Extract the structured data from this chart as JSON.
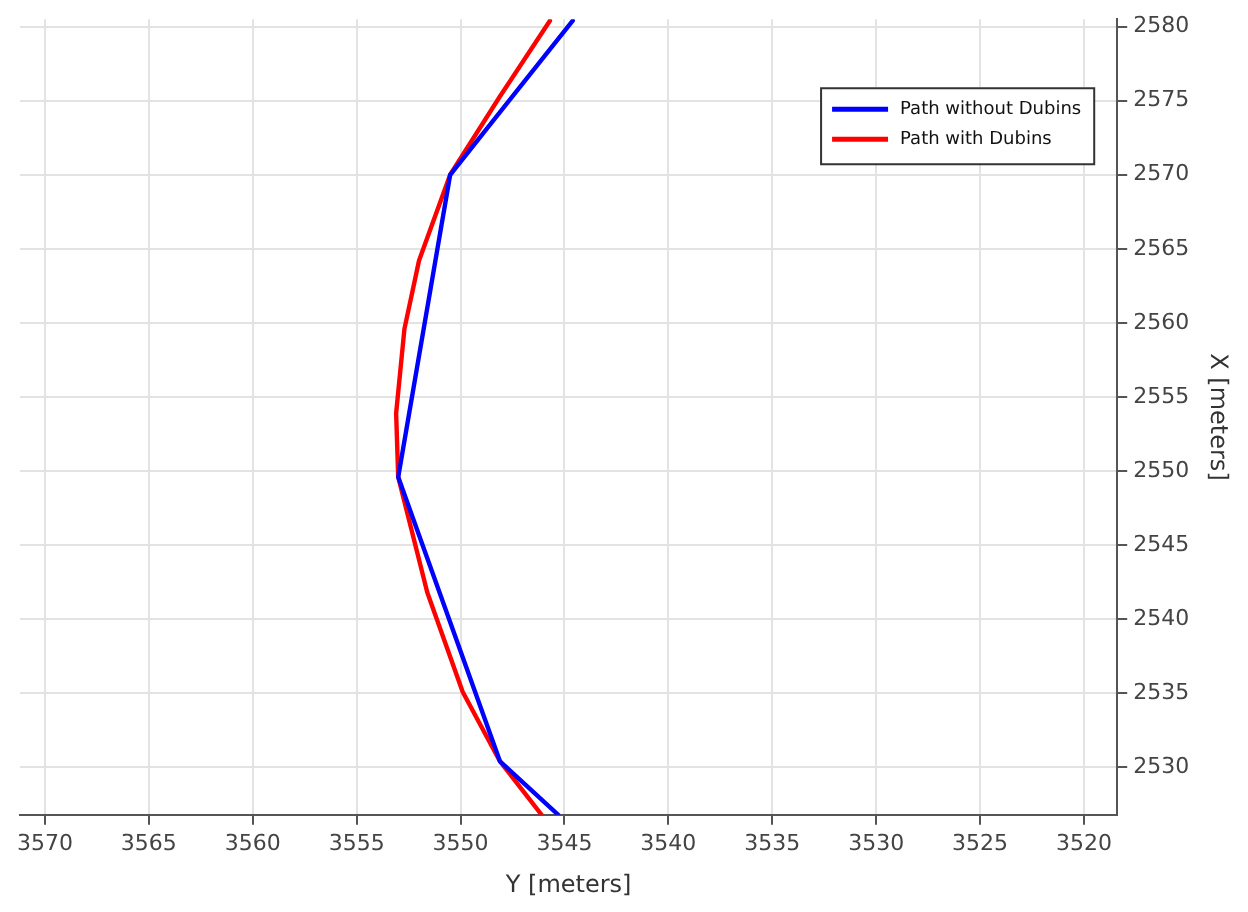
{
  "chart_data": {
    "type": "line",
    "xlabel": "Y [meters]",
    "ylabel": "X [meters]",
    "xlim": [
      3571.2,
      3518.4
    ],
    "xticks": [
      3570,
      3565,
      3560,
      3555,
      3550,
      3545,
      3540,
      3535,
      3530,
      3525,
      3520
    ],
    "ylim": [
      2526.8,
      2580.5
    ],
    "yticks": [
      2530,
      2535,
      2540,
      2545,
      2550,
      2555,
      2560,
      2565,
      2570,
      2575,
      2580
    ],
    "grid": true,
    "legend": "top right",
    "marker": "none",
    "line_style": "solid",
    "series": [
      {
        "name": "Path without Dubins",
        "color": "#0000ff",
        "x": [
          3544.6,
          3550.5,
          3553.0,
          3548.1,
          3545.3
        ],
        "values": [
          2580.4,
          2570,
          2549.6,
          2530.4,
          2526.8
        ]
      },
      {
        "name": "Path with Dubins",
        "color": "#ff0000",
        "x": [
          3545.7,
          3548.1,
          3550.5,
          3552.0,
          3552.7,
          3553.1,
          3553.0,
          3551.6,
          3549.9,
          3548.1,
          3546.1
        ],
        "values": [
          2580.4,
          2575.3,
          2570,
          2564.2,
          2559.6,
          2553.9,
          2549.6,
          2541.8,
          2535.1,
          2530.4,
          2526.8
        ]
      }
    ]
  }
}
